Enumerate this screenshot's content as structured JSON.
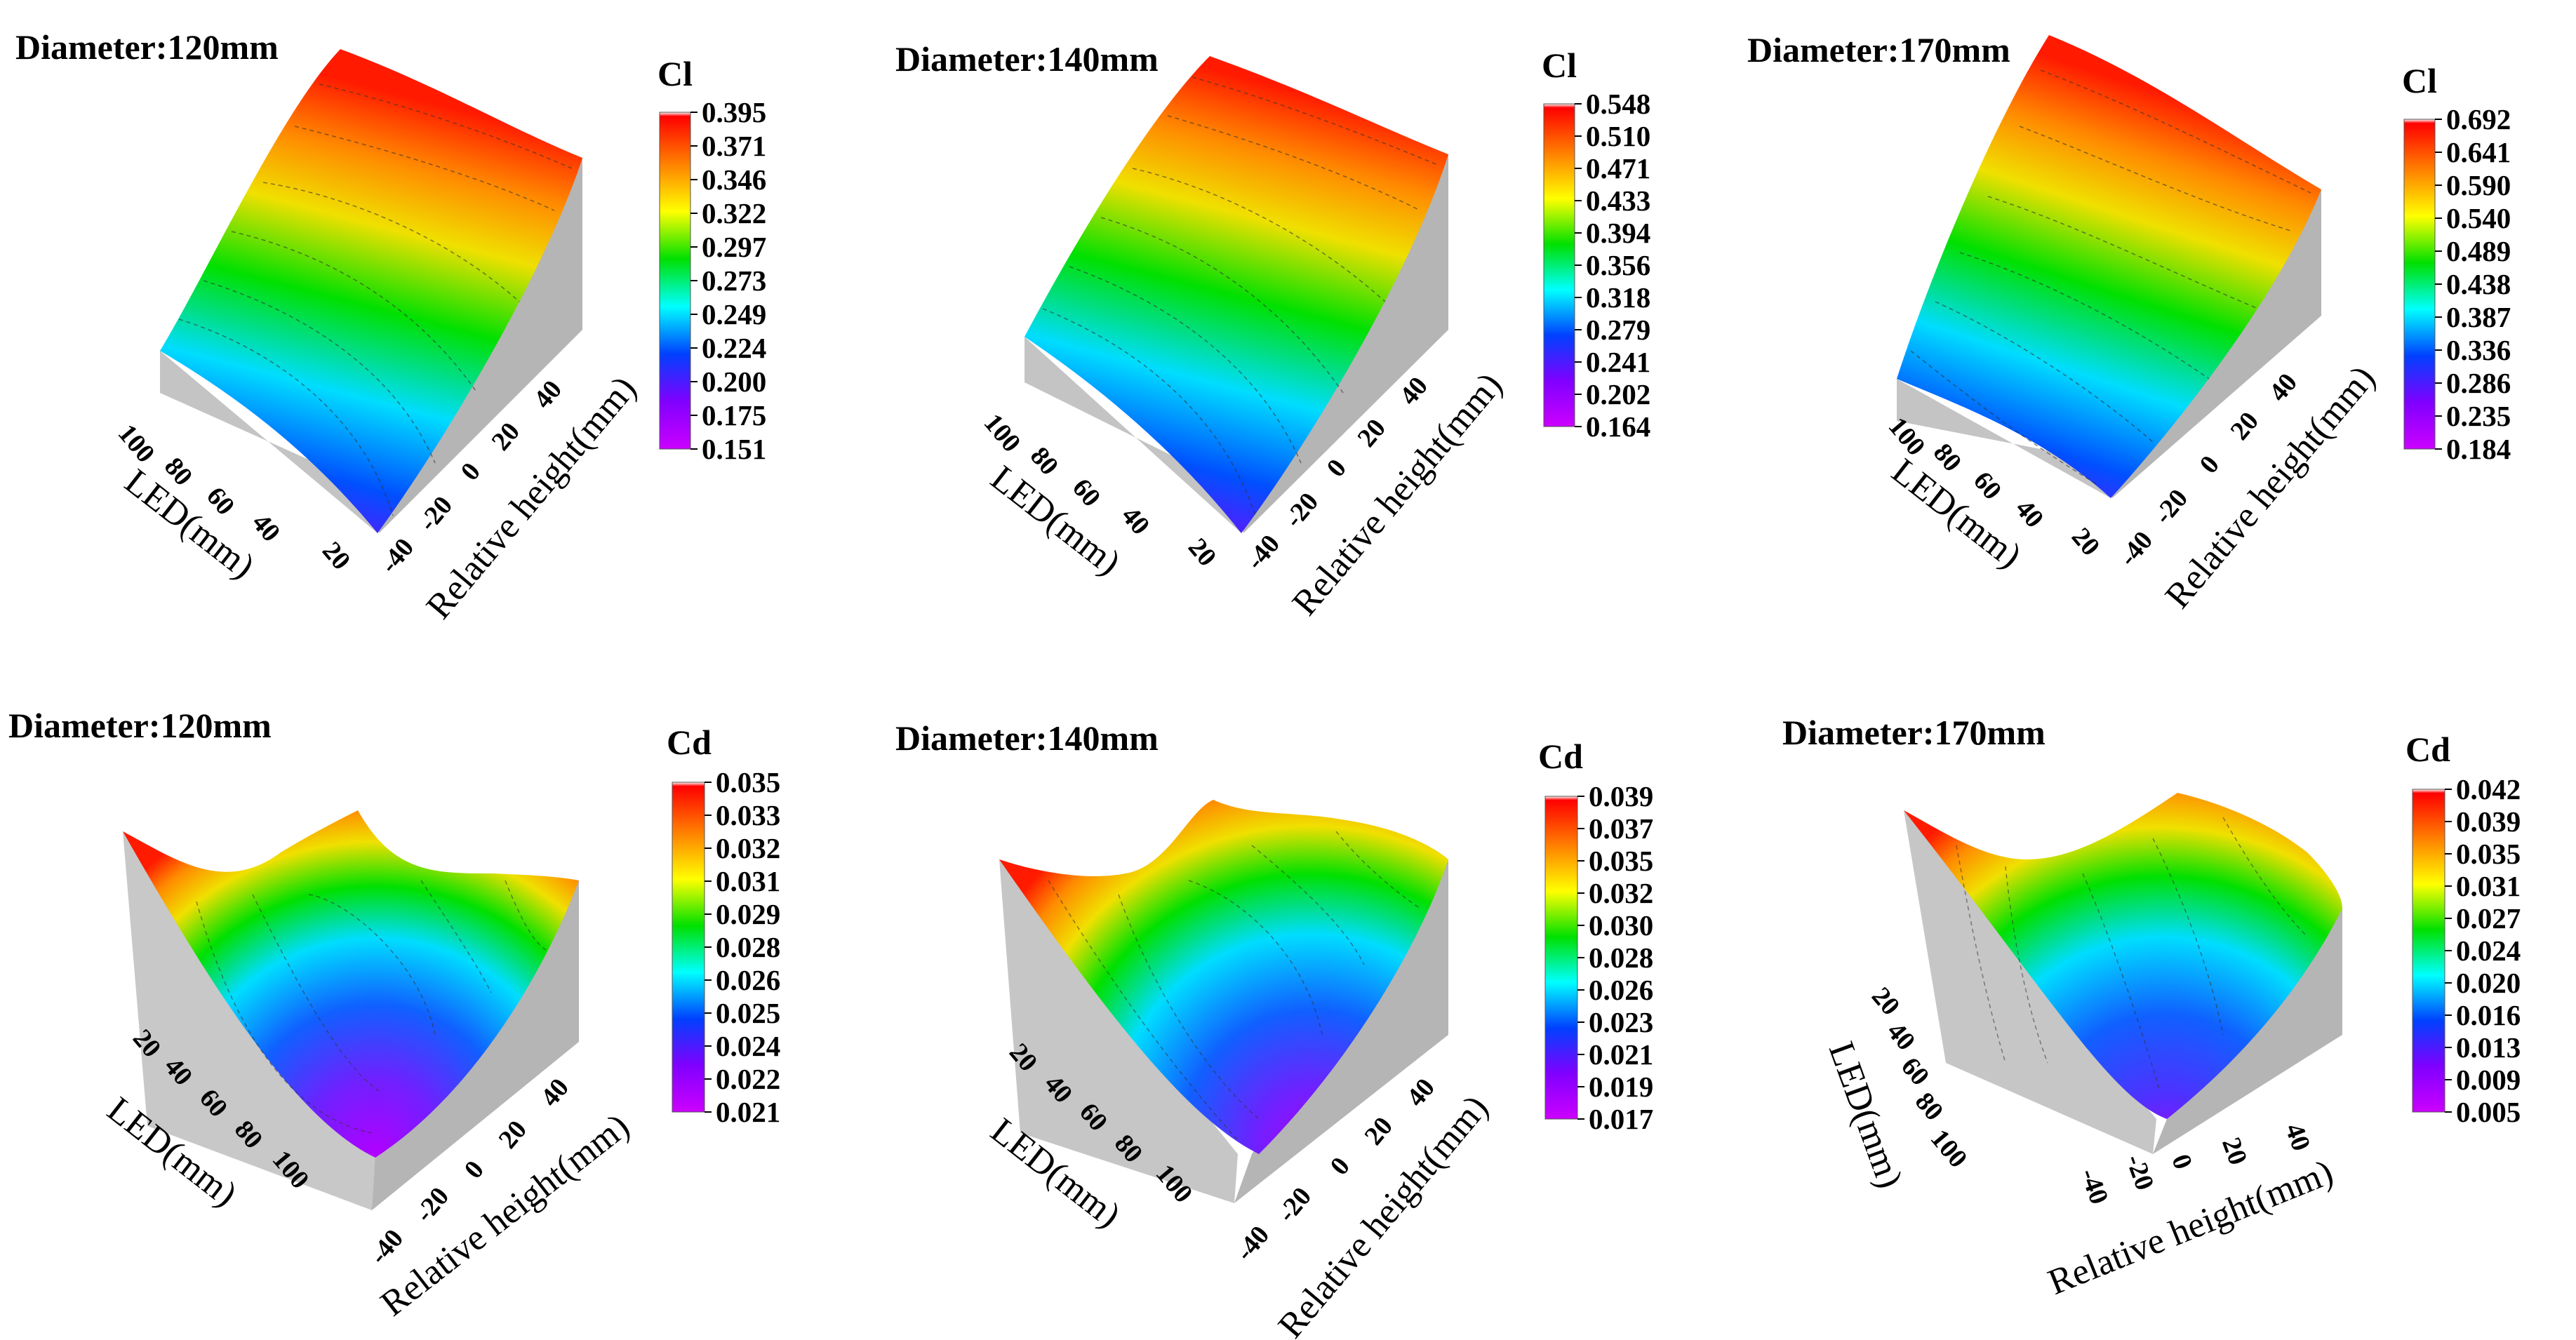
{
  "colormap": [
    "#ffffff",
    "#ff0000",
    "#ff8000",
    "#ffff00",
    "#00e000",
    "#00ffff",
    "#0040ff",
    "#8000ff",
    "#cc00ff"
  ],
  "chart_data": [
    {
      "type": "surface3d",
      "title": "Diameter:120mm",
      "colorbar_title": "Cl",
      "colorbar_ticks": [
        "0.395",
        "0.371",
        "0.346",
        "0.322",
        "0.297",
        "0.273",
        "0.249",
        "0.224",
        "0.200",
        "0.175",
        "0.151"
      ],
      "xlabel": "LED(mm)",
      "x_ticks": [
        "100",
        "80",
        "60",
        "40",
        "20"
      ],
      "ylabel": "Relative height(mm)",
      "y_ticks": [
        "40",
        "20",
        "0",
        "-20",
        "-40"
      ],
      "z_range": [
        0.151,
        0.395
      ]
    },
    {
      "type": "surface3d",
      "title": "Diameter:140mm",
      "colorbar_title": "Cl",
      "colorbar_ticks": [
        "0.548",
        "0.510",
        "0.471",
        "0.433",
        "0.394",
        "0.356",
        "0.318",
        "0.279",
        "0.241",
        "0.202",
        "0.164"
      ],
      "xlabel": "LED(mm)",
      "x_ticks": [
        "100",
        "80",
        "60",
        "40",
        "20"
      ],
      "ylabel": "Relative height(mm)",
      "y_ticks": [
        "40",
        "20",
        "0",
        "-20",
        "-40"
      ],
      "z_range": [
        0.164,
        0.548
      ]
    },
    {
      "type": "surface3d",
      "title": "Diameter:170mm",
      "colorbar_title": "Cl",
      "colorbar_ticks": [
        "0.692",
        "0.641",
        "0.590",
        "0.540",
        "0.489",
        "0.438",
        "0.387",
        "0.336",
        "0.286",
        "0.235",
        "0.184"
      ],
      "xlabel": "LED(mm)",
      "x_ticks": [
        "100",
        "80",
        "60",
        "40",
        "20"
      ],
      "ylabel": "Relative height(mm)",
      "y_ticks": [
        "40",
        "20",
        "0",
        "-20",
        "-40"
      ],
      "z_range": [
        0.184,
        0.692
      ]
    },
    {
      "type": "surface3d",
      "title": "Diameter:120mm",
      "colorbar_title": "Cd",
      "colorbar_ticks": [
        "0.035",
        "0.033",
        "0.032",
        "0.031",
        "0.029",
        "0.028",
        "0.026",
        "0.025",
        "0.024",
        "0.022",
        "0.021"
      ],
      "xlabel": "LED(mm)",
      "x_ticks": [
        "20",
        "40",
        "60",
        "80",
        "100"
      ],
      "ylabel": "Relative height(mm)",
      "y_ticks": [
        "40",
        "20",
        "0",
        "-20",
        "-40"
      ],
      "z_range": [
        0.021,
        0.035
      ]
    },
    {
      "type": "surface3d",
      "title": "Diameter:140mm",
      "colorbar_title": "Cd",
      "colorbar_ticks": [
        "0.039",
        "0.037",
        "0.035",
        "0.032",
        "0.030",
        "0.028",
        "0.026",
        "0.023",
        "0.021",
        "0.019",
        "0.017"
      ],
      "xlabel": "LED(mm)",
      "x_ticks": [
        "20",
        "40",
        "60",
        "80",
        "100"
      ],
      "ylabel": "Relative height(mm)",
      "y_ticks": [
        "40",
        "20",
        "0",
        "-20",
        "-40"
      ],
      "z_range": [
        0.017,
        0.039
      ]
    },
    {
      "type": "surface3d",
      "title": "Diameter:170mm",
      "colorbar_title": "Cd",
      "colorbar_ticks": [
        "0.042",
        "0.039",
        "0.035",
        "0.031",
        "0.027",
        "0.024",
        "0.020",
        "0.016",
        "0.013",
        "0.009",
        "0.005"
      ],
      "xlabel": "LED(mm)",
      "x_ticks": [
        "20",
        "40",
        "60",
        "80",
        "100"
      ],
      "ylabel": "Relative height(mm)",
      "y_ticks": [
        "-40",
        "-20",
        "0",
        "20",
        "40"
      ],
      "z_range": [
        0.005,
        0.042
      ]
    }
  ]
}
